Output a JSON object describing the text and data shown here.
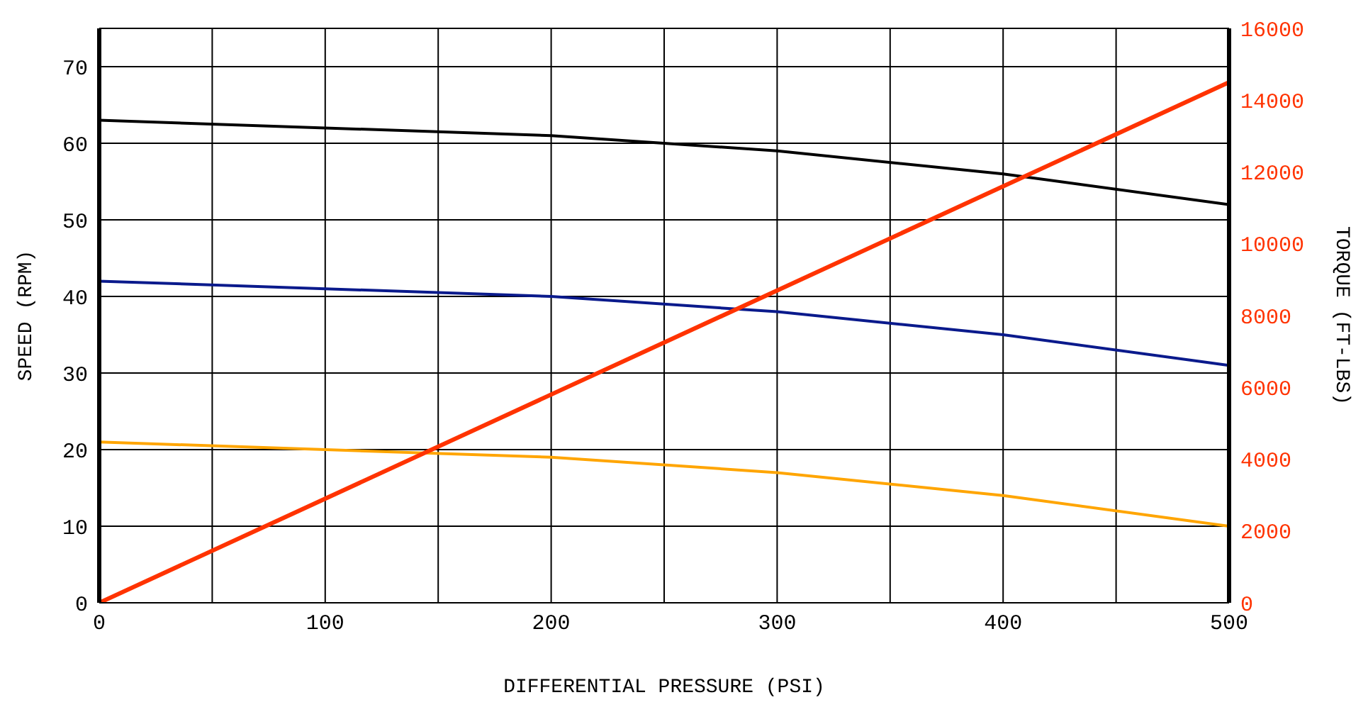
{
  "chart_data": {
    "type": "line",
    "xlabel": "DIFFERENTIAL PRESSURE (PSI)",
    "ylabel": "SPEED (RPM)",
    "y2label": "TORQUE (FT-LBS)",
    "x": [
      0,
      200,
      300,
      400,
      500
    ],
    "xlim": [
      0,
      500
    ],
    "xticks": [
      0,
      {
        "value": 50,
        "label": null
      },
      100,
      {
        "value": 150,
        "label": null
      },
      200,
      {
        "value": 250,
        "label": null
      },
      300,
      {
        "value": 350,
        "label": null
      },
      400,
      {
        "value": 450,
        "label": null
      },
      500
    ],
    "ylim": [
      0,
      75
    ],
    "yticks": [
      0,
      10,
      20,
      30,
      40,
      50,
      60,
      70
    ],
    "y2lim": [
      0,
      16000
    ],
    "y2ticks": [
      0,
      2000,
      4000,
      6000,
      8000,
      10000,
      12000,
      14000,
      16000
    ],
    "grid": true,
    "marker": "none",
    "line_style": "solid",
    "series": [
      {
        "color": "#000000",
        "values": [
          63,
          61,
          59,
          56,
          52
        ]
      },
      {
        "color": "#0a1a8c",
        "values": [
          42,
          40,
          38,
          35,
          31
        ]
      },
      {
        "color": "#ffa500",
        "values": [
          21,
          19,
          17,
          14,
          10
        ]
      },
      {
        "color": "#ff3300",
        "axis": "y2",
        "x": [
          0,
          500
        ],
        "values": [
          0,
          14500
        ]
      }
    ]
  }
}
